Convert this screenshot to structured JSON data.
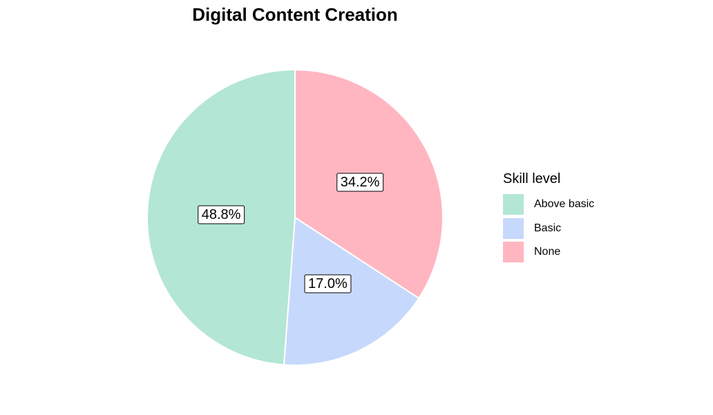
{
  "chart_data": {
    "type": "pie",
    "title": "Digital Content Creation",
    "legend_title": "Skill level",
    "legend_position": "right",
    "categories": [
      "Above basic",
      "Basic",
      "None"
    ],
    "values": [
      48.8,
      17.0,
      34.2
    ],
    "labels": [
      "48.8%",
      "17.0%",
      "34.2%"
    ],
    "colors": [
      "#b3e6d4",
      "#c6d9fc",
      "#ffb6c1"
    ]
  }
}
